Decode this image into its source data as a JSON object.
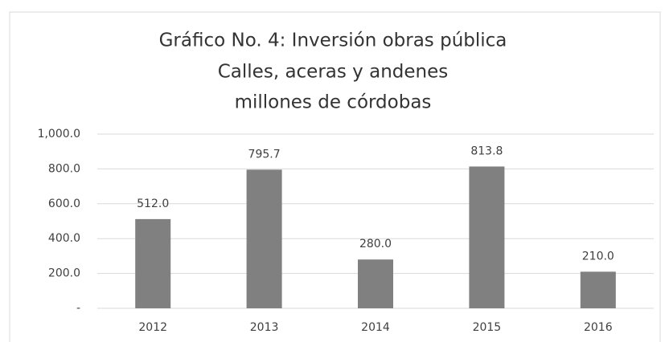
{
  "chart_data": {
    "type": "bar",
    "title": [
      "Gráfico No. 4: Inversión obras pública",
      "Calles, aceras y andenes",
      "millones de córdobas"
    ],
    "categories": [
      "2012",
      "2013",
      "2014",
      "2015",
      "2016"
    ],
    "values": [
      512.0,
      795.7,
      280.0,
      813.8,
      210.0
    ],
    "value_labels": [
      "512.0",
      "795.7",
      "280.0",
      "813.8",
      "210.0"
    ],
    "color": "#808080",
    "ylim": [
      0,
      1000
    ],
    "yticks": [
      {
        "value": 0,
        "label": "-"
      },
      {
        "value": 200,
        "label": "200.0"
      },
      {
        "value": 400,
        "label": "400.0"
      },
      {
        "value": 600,
        "label": "600.0"
      },
      {
        "value": 800,
        "label": "800.0"
      },
      {
        "value": 1000,
        "label": "1,000.0"
      }
    ],
    "grid": true
  }
}
